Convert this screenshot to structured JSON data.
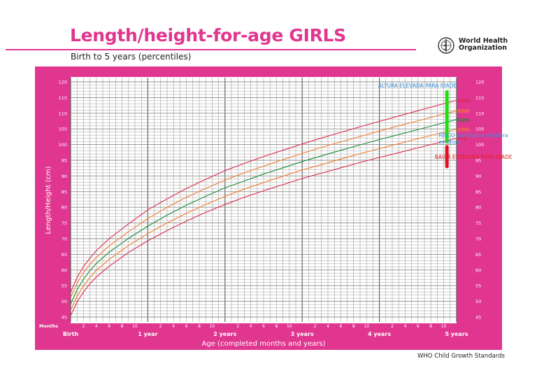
{
  "header": {
    "title": "Length/height-for-age GIRLS",
    "subtitle": "Birth to 5 years (percentiles)",
    "org_line1": "World Health",
    "org_line2": "Organization",
    "logo_icon": "who-emblem-icon"
  },
  "footer": {
    "text": "WHO Child Growth Standards"
  },
  "colors": {
    "panel": "#e0368f",
    "grid": "#8c8c8c",
    "line_97": "#d92b4f",
    "line_85": "#ee7d2e",
    "line_50": "#1a8a3a",
    "line_15": "#ee7d2e",
    "line_3": "#d92b4f",
    "marker_green": "#22dd11",
    "marker_red": "#dd1122",
    "note_blue": "#3a8fd8",
    "note_red": "#e02020"
  },
  "chart_data": {
    "type": "line",
    "xlabel": "Age (completed months and years)",
    "ylabel": "Length/Height (cm)",
    "xlim": [
      0,
      60
    ],
    "ylim": [
      45,
      120
    ],
    "y_ticks": [
      45,
      50,
      55,
      60,
      65,
      70,
      75,
      80,
      85,
      90,
      95,
      100,
      105,
      110,
      115,
      120
    ],
    "month_axis_title": "Months",
    "month_ticks": [
      {
        "month": 2,
        "label": "2"
      },
      {
        "month": 4,
        "label": "4"
      },
      {
        "month": 6,
        "label": "6"
      },
      {
        "month": 8,
        "label": "8"
      },
      {
        "month": 10,
        "label": "10"
      },
      {
        "month": 14,
        "label": "2"
      },
      {
        "month": 16,
        "label": "4"
      },
      {
        "month": 18,
        "label": "6"
      },
      {
        "month": 20,
        "label": "8"
      },
      {
        "month": 22,
        "label": "10"
      },
      {
        "month": 26,
        "label": "2"
      },
      {
        "month": 28,
        "label": "4"
      },
      {
        "month": 30,
        "label": "6"
      },
      {
        "month": 32,
        "label": "8"
      },
      {
        "month": 34,
        "label": "10"
      },
      {
        "month": 38,
        "label": "2"
      },
      {
        "month": 40,
        "label": "4"
      },
      {
        "month": 42,
        "label": "6"
      },
      {
        "month": 44,
        "label": "8"
      },
      {
        "month": 46,
        "label": "10"
      },
      {
        "month": 50,
        "label": "2"
      },
      {
        "month": 52,
        "label": "4"
      },
      {
        "month": 54,
        "label": "6"
      },
      {
        "month": 56,
        "label": "8"
      },
      {
        "month": 58,
        "label": "10"
      }
    ],
    "year_ticks": [
      {
        "month": 0,
        "label": "Birth"
      },
      {
        "month": 12,
        "label": "1 year"
      },
      {
        "month": 24,
        "label": "2 years"
      },
      {
        "month": 36,
        "label": "3 years"
      },
      {
        "month": 48,
        "label": "4 years"
      },
      {
        "month": 60,
        "label": "5 years"
      }
    ],
    "x": [
      0,
      1,
      2,
      3,
      4,
      6,
      9,
      12,
      15,
      18,
      21,
      24,
      27,
      30,
      33,
      36,
      39,
      42,
      45,
      48,
      51,
      54,
      57,
      60
    ],
    "series": [
      {
        "name": "97th",
        "color_key": "line_97",
        "values": [
          52.9,
          57.6,
          61.1,
          63.8,
          66.2,
          70.0,
          74.7,
          79.2,
          82.7,
          86.0,
          88.9,
          91.7,
          94.0,
          96.2,
          98.2,
          100.2,
          102.1,
          103.9,
          105.7,
          107.4,
          109.1,
          110.8,
          112.5,
          114.1
        ]
      },
      {
        "name": "85th",
        "color_key": "line_85",
        "values": [
          51.2,
          55.8,
          59.2,
          61.8,
          64.0,
          67.7,
          72.2,
          76.4,
          80.0,
          83.2,
          86.0,
          88.7,
          91.0,
          93.1,
          95.2,
          97.2,
          99.1,
          100.9,
          102.6,
          104.3,
          106.0,
          107.6,
          109.2,
          110.8
        ]
      },
      {
        "name": "50th",
        "color_key": "line_50",
        "values": [
          49.1,
          53.7,
          57.1,
          59.8,
          62.1,
          65.7,
          70.1,
          74.0,
          77.5,
          80.7,
          83.5,
          86.2,
          88.4,
          90.6,
          92.6,
          94.6,
          96.4,
          98.2,
          99.9,
          101.6,
          103.2,
          104.8,
          106.4,
          108.0
        ]
      },
      {
        "name": "15th",
        "color_key": "line_15",
        "values": [
          47.1,
          51.6,
          54.9,
          57.6,
          59.9,
          63.4,
          67.8,
          71.6,
          75.0,
          78.1,
          80.9,
          83.5,
          85.8,
          87.9,
          89.9,
          91.9,
          93.6,
          95.4,
          97.1,
          98.7,
          100.3,
          101.9,
          103.4,
          104.9
        ]
      },
      {
        "name": "3rd",
        "color_key": "line_3",
        "values": [
          45.4,
          49.8,
          53.0,
          55.6,
          57.8,
          61.2,
          65.6,
          69.3,
          72.6,
          75.6,
          78.4,
          80.9,
          83.2,
          85.3,
          87.2,
          89.2,
          90.9,
          92.6,
          94.3,
          95.9,
          97.4,
          99.0,
          100.5,
          102.0
        ]
      }
    ],
    "markers": [
      {
        "color_key": "marker_green",
        "x": 58.5,
        "y_from": 101,
        "y_to": 116.8
      },
      {
        "color_key": "marker_red",
        "x": 58.5,
        "y_from": 93,
        "y_to": 99.3
      }
    ],
    "annotations": [
      {
        "text": "ALTURA ELEVADA PARA IDADE",
        "color_key": "note_blue",
        "x": 47.8,
        "y": 118.2
      },
      {
        "text": "RISCO para baixa estatura",
        "color_key": "note_blue",
        "x": 57.2,
        "y": 102.4
      },
      {
        "text": "estatura",
        "color_key": "note_blue",
        "x": 57.2,
        "y": 100.3
      },
      {
        "text": "BAIXA ESTATURA PARA IDADE",
        "color_key": "note_red",
        "x": 56.6,
        "y": 95.5
      }
    ]
  }
}
